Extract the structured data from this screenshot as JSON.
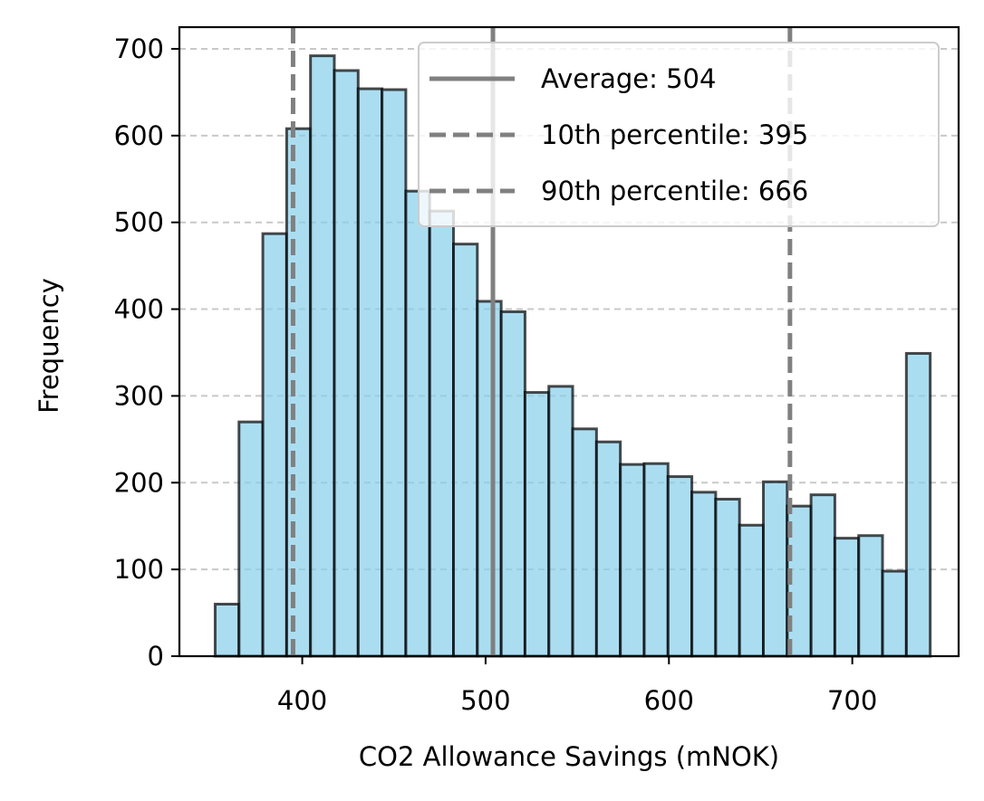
{
  "chart_data": {
    "type": "bar",
    "subtype": "histogram",
    "xlabel": "CO2 Allowance Savings (mNOK)",
    "ylabel": "Frequency",
    "xlim": [
      333,
      758
    ],
    "ylim": [
      0,
      725
    ],
    "x_ticks": [
      400,
      500,
      600,
      700
    ],
    "y_ticks": [
      0,
      100,
      200,
      300,
      400,
      500,
      600,
      700
    ],
    "grid": {
      "axis": "y",
      "style": "dashed"
    },
    "bar_color": "#87CEEB",
    "bar_edge_color": "#000000",
    "bins": [
      {
        "start": 352.5,
        "end": 365.5,
        "count": 60
      },
      {
        "start": 365.5,
        "end": 378.5,
        "count": 270
      },
      {
        "start": 378.5,
        "end": 391.5,
        "count": 487
      },
      {
        "start": 391.5,
        "end": 404.5,
        "count": 608
      },
      {
        "start": 404.5,
        "end": 417.5,
        "count": 692
      },
      {
        "start": 417.5,
        "end": 430.5,
        "count": 675
      },
      {
        "start": 430.5,
        "end": 443.5,
        "count": 654
      },
      {
        "start": 443.5,
        "end": 456.5,
        "count": 653
      },
      {
        "start": 456.5,
        "end": 469.5,
        "count": 536
      },
      {
        "start": 469.5,
        "end": 482.5,
        "count": 513
      },
      {
        "start": 482.5,
        "end": 495.5,
        "count": 475
      },
      {
        "start": 495.5,
        "end": 508.5,
        "count": 409
      },
      {
        "start": 508.5,
        "end": 521.5,
        "count": 397
      },
      {
        "start": 521.5,
        "end": 534.5,
        "count": 304
      },
      {
        "start": 534.5,
        "end": 547.5,
        "count": 311
      },
      {
        "start": 547.5,
        "end": 560.5,
        "count": 262
      },
      {
        "start": 560.5,
        "end": 573.5,
        "count": 247
      },
      {
        "start": 573.5,
        "end": 586.5,
        "count": 221
      },
      {
        "start": 586.5,
        "end": 599.5,
        "count": 222
      },
      {
        "start": 599.5,
        "end": 612.5,
        "count": 207
      },
      {
        "start": 612.5,
        "end": 625.5,
        "count": 189
      },
      {
        "start": 625.5,
        "end": 638.5,
        "count": 181
      },
      {
        "start": 638.5,
        "end": 651.5,
        "count": 151
      },
      {
        "start": 651.5,
        "end": 664.5,
        "count": 201
      },
      {
        "start": 664.5,
        "end": 677.5,
        "count": 173
      },
      {
        "start": 677.5,
        "end": 690.5,
        "count": 186
      },
      {
        "start": 690.5,
        "end": 703.5,
        "count": 136
      },
      {
        "start": 703.5,
        "end": 716.5,
        "count": 139
      },
      {
        "start": 716.5,
        "end": 729.5,
        "count": 98
      },
      {
        "start": 729.5,
        "end": 742.5,
        "count": 349
      }
    ],
    "reference_lines": [
      {
        "label": "Average: 504",
        "x": 504,
        "style": "solid",
        "color": "#808080"
      },
      {
        "label": "10th percentile: 395",
        "x": 395,
        "style": "dashed",
        "color": "#808080"
      },
      {
        "label": "90th percentile: 666",
        "x": 666,
        "style": "dashed",
        "color": "#808080"
      }
    ],
    "legend_position": "top-right"
  }
}
